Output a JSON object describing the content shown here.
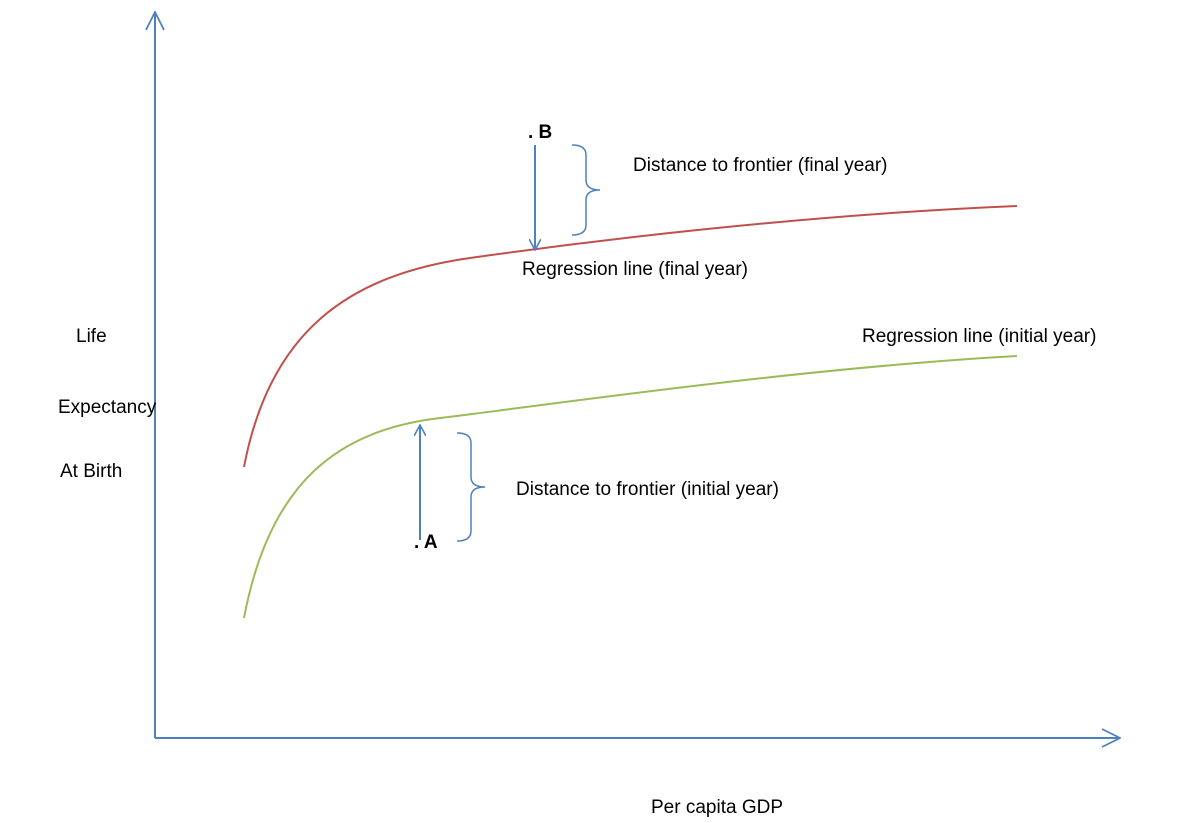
{
  "y_axis_label": [
    "Life",
    "Expectancy",
    "At Birth"
  ],
  "x_axis_label": "Per capita GDP",
  "curves": [
    {
      "label": "Regression line (final year)"
    },
    {
      "label": "Regression line (initial year)"
    }
  ],
  "points": [
    {
      "label": ". B",
      "distance_label": "Distance to frontier (final year)"
    },
    {
      "label": ". A",
      "distance_label": "Distance to frontier (initial year)"
    }
  ]
}
